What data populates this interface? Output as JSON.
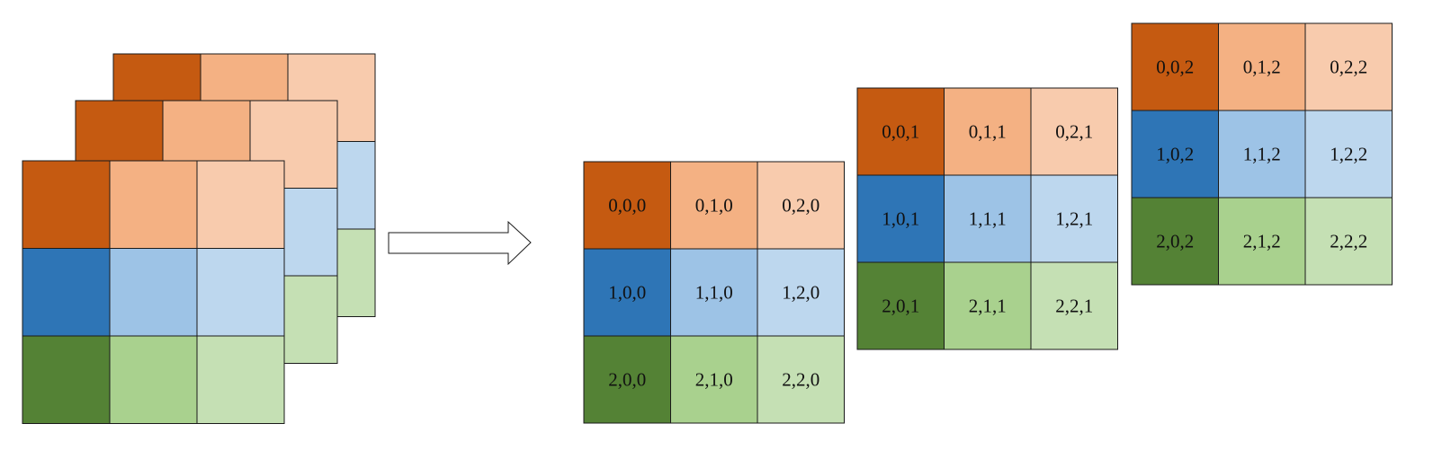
{
  "colors": {
    "row0": [
      "#c55a11",
      "#f4b183",
      "#f8cbad"
    ],
    "row1": [
      "#2e75b6",
      "#9dc3e6",
      "#bdd7ee"
    ],
    "row2": [
      "#548235",
      "#a9d18e",
      "#c5e0b4"
    ],
    "stroke": "#1a1a1a",
    "arrow_fill": "#ffffff"
  },
  "input_stack": {
    "layers": 3,
    "rows": 3,
    "cols": 3
  },
  "transform_arrow": {
    "icon": "right-arrow-icon"
  },
  "output_slices": [
    {
      "labels": [
        [
          "0,0,0",
          "0,1,0",
          "0,2,0"
        ],
        [
          "1,0,0",
          "1,1,0",
          "1,2,0"
        ],
        [
          "2,0,0",
          "2,1,0",
          "2,2,0"
        ]
      ]
    },
    {
      "labels": [
        [
          "0,0,1",
          "0,1,1",
          "0,2,1"
        ],
        [
          "1,0,1",
          "1,1,1",
          "1,2,1"
        ],
        [
          "2,0,1",
          "2,1,1",
          "2,2,1"
        ]
      ]
    },
    {
      "labels": [
        [
          "0,0,2",
          "0,1,2",
          "0,2,2"
        ],
        [
          "1,0,2",
          "1,1,2",
          "1,2,2"
        ],
        [
          "2,0,2",
          "2,1,2",
          "2,2,2"
        ]
      ]
    }
  ]
}
